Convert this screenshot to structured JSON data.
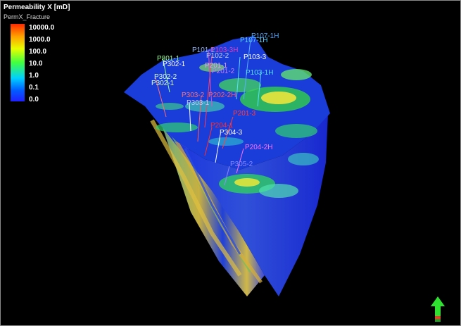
{
  "legend": {
    "title": "Permeability X [mD]",
    "property": "PermX_Fracture",
    "ticks": [
      "10000.0",
      "1000.0",
      "100.0",
      "10.0",
      "1.0",
      "0.1",
      "0.0"
    ]
  },
  "wells": [
    {
      "name": "P107-1H",
      "color": "#4aa8ff"
    },
    {
      "name": "P107-1H",
      "color": "#58d0ff"
    },
    {
      "name": "P101-1",
      "color": "#8fb8ff"
    },
    {
      "name": "P103-3H",
      "color": "#e040c0"
    },
    {
      "name": "P102-2",
      "color": "#c8d0ff"
    },
    {
      "name": "P103-3",
      "color": "#ffffff"
    },
    {
      "name": "P103-1H",
      "color": "#58e0ff"
    },
    {
      "name": "P301-1",
      "color": "#98ff98"
    },
    {
      "name": "P302-1",
      "color": "#ffffff"
    },
    {
      "name": "P201-1",
      "color": "#e0a0ff"
    },
    {
      "name": "P201-2",
      "color": "#c080ff"
    },
    {
      "name": "P303-2",
      "color": "#ff7070"
    },
    {
      "name": "P302-2",
      "color": "#d8ffd8"
    },
    {
      "name": "P302-1",
      "color": "#d8ffd8"
    },
    {
      "name": "P303-1",
      "color": "#c8c8ff"
    },
    {
      "name": "P202-2H",
      "color": "#ff6060"
    },
    {
      "name": "P201-3",
      "color": "#ff4040"
    },
    {
      "name": "P204-1",
      "color": "#ff3030"
    },
    {
      "name": "P304-3",
      "color": "#ffffff"
    },
    {
      "name": "P204-2H",
      "color": "#ff70ff"
    },
    {
      "name": "P305-2",
      "color": "#8a8aff"
    }
  ],
  "compass_icon": "north-arrow-icon"
}
